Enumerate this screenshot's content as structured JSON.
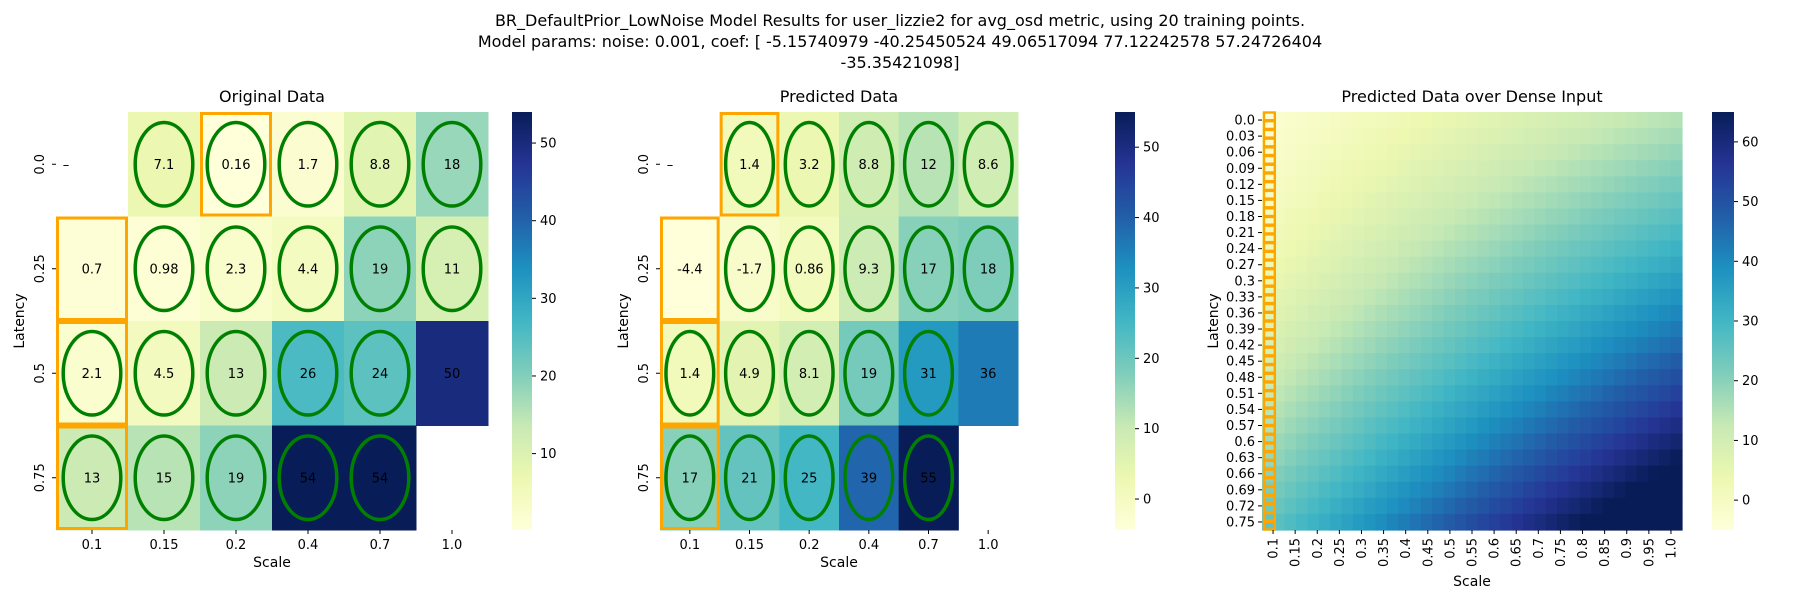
{
  "suptitle": [
    "BR_DefaultPrior_LowNoise Model Results for user_lizzie2 for avg_osd metric, using 20 training points.",
    "Model params: noise: 0.001, coef: [ -5.15740979 -40.25450524  49.06517094  77.12242578  57.24726404",
    "-35.35421098]"
  ],
  "colors": {
    "training_ellipse": "#008000",
    "highlight_box": "#FFA500",
    "colormap": "YlGnBu"
  },
  "chart_data": [
    {
      "type": "heatmap",
      "title": "Original Data",
      "xlabel": "Scale",
      "ylabel": "Latency",
      "x_categories": [
        "0.1",
        "0.15",
        "0.2",
        "0.4",
        "0.7",
        "1.0"
      ],
      "y_categories": [
        "0.0",
        "0.25",
        "0.5",
        "0.75"
      ],
      "values": [
        [
          null,
          7.1,
          0.16,
          1.7,
          8.8,
          18
        ],
        [
          0.7,
          0.98,
          2.3,
          4.4,
          19,
          11
        ],
        [
          2.1,
          4.5,
          13,
          26,
          24,
          50
        ],
        [
          13,
          15,
          19,
          54,
          54,
          null
        ]
      ],
      "value_labels": [
        [
          "",
          "7.1",
          "0.16",
          "1.7",
          "8.8",
          "18"
        ],
        [
          "0.7",
          "0.98",
          "2.3",
          "4.4",
          "19",
          "11"
        ],
        [
          "2.1",
          "4.5",
          "13",
          "26",
          "24",
          "50"
        ],
        [
          "13",
          "15",
          "19",
          "54",
          "54",
          ""
        ]
      ],
      "y_tick_labels_special": {
        "0": "–"
      },
      "training_cells": [
        [
          0,
          1
        ],
        [
          0,
          2
        ],
        [
          0,
          3
        ],
        [
          0,
          4
        ],
        [
          0,
          5
        ],
        [
          1,
          1
        ],
        [
          1,
          2
        ],
        [
          1,
          3
        ],
        [
          1,
          4
        ],
        [
          1,
          5
        ],
        [
          2,
          0
        ],
        [
          2,
          1
        ],
        [
          2,
          2
        ],
        [
          2,
          3
        ],
        [
          2,
          4
        ],
        [
          3,
          0
        ],
        [
          3,
          1
        ],
        [
          3,
          2
        ],
        [
          3,
          3
        ],
        [
          3,
          4
        ]
      ],
      "highlight_cells": [
        [
          0,
          2
        ],
        [
          1,
          0
        ],
        [
          2,
          0
        ],
        [
          3,
          0
        ]
      ],
      "color_range": [
        0.16,
        54
      ],
      "colorbar_ticks": [
        10,
        20,
        30,
        40,
        50
      ]
    },
    {
      "type": "heatmap",
      "title": "Predicted Data",
      "xlabel": "Scale",
      "ylabel": "Latency",
      "x_categories": [
        "0.1",
        "0.15",
        "0.2",
        "0.4",
        "0.7",
        "1.0"
      ],
      "y_categories": [
        "0.0",
        "0.25",
        "0.5",
        "0.75"
      ],
      "values": [
        [
          null,
          1.4,
          3.2,
          8.8,
          12,
          8.6
        ],
        [
          -4.4,
          -1.7,
          0.86,
          9.3,
          17,
          18
        ],
        [
          1.4,
          4.9,
          8.1,
          19,
          31,
          36
        ],
        [
          17,
          21,
          25,
          39,
          55,
          null
        ]
      ],
      "value_labels": [
        [
          "",
          "1.4",
          "3.2",
          "8.8",
          "12",
          "8.6"
        ],
        [
          "-4.4",
          "-1.7",
          "0.86",
          "9.3",
          "17",
          "18"
        ],
        [
          "1.4",
          "4.9",
          "8.1",
          "19",
          "31",
          "36"
        ],
        [
          "17",
          "21",
          "25",
          "39",
          "55",
          ""
        ]
      ],
      "y_tick_labels_special": {
        "0": "–"
      },
      "training_cells": [
        [
          0,
          1
        ],
        [
          0,
          2
        ],
        [
          0,
          3
        ],
        [
          0,
          4
        ],
        [
          0,
          5
        ],
        [
          1,
          1
        ],
        [
          1,
          2
        ],
        [
          1,
          3
        ],
        [
          1,
          4
        ],
        [
          1,
          5
        ],
        [
          2,
          0
        ],
        [
          2,
          1
        ],
        [
          2,
          2
        ],
        [
          2,
          3
        ],
        [
          2,
          4
        ],
        [
          3,
          0
        ],
        [
          3,
          1
        ],
        [
          3,
          2
        ],
        [
          3,
          3
        ],
        [
          3,
          4
        ]
      ],
      "highlight_cells": [
        [
          0,
          1
        ],
        [
          1,
          0
        ],
        [
          2,
          0
        ],
        [
          3,
          0
        ]
      ],
      "color_range": [
        -4.4,
        55
      ],
      "colorbar_ticks": [
        0,
        10,
        20,
        30,
        40,
        50
      ]
    },
    {
      "type": "heatmap",
      "title": "Predicted Data over Dense Input",
      "xlabel": "Scale",
      "ylabel": "Latency",
      "x_categories": [
        "0.1",
        "0.15",
        "0.2",
        "0.25",
        "0.3",
        "0.35",
        "0.4",
        "0.45",
        "0.5",
        "0.55",
        "0.6",
        "0.65",
        "0.7",
        "0.75",
        "0.8",
        "0.85",
        "0.9",
        "0.95",
        "1.0"
      ],
      "y_categories": [
        "0.0",
        "0.03",
        "0.06",
        "0.09",
        "0.12",
        "0.15",
        "0.18",
        "0.21",
        "0.24",
        "0.27",
        "0.3",
        "0.33",
        "0.36",
        "0.39",
        "0.42",
        "0.45",
        "0.48",
        "0.51",
        "0.54",
        "0.57",
        "0.6",
        "0.63",
        "0.66",
        "0.69",
        "0.72",
        "0.75"
      ],
      "dense_grid": {
        "x_range": [
          0.1,
          1.0
        ],
        "y_range": [
          0.0,
          0.75
        ],
        "nx": 37,
        "ny": 26
      },
      "highlight_column": "0.1",
      "color_range": [
        -5,
        65
      ],
      "colorbar_ticks": [
        0,
        10,
        20,
        30,
        40,
        50,
        60
      ]
    }
  ]
}
